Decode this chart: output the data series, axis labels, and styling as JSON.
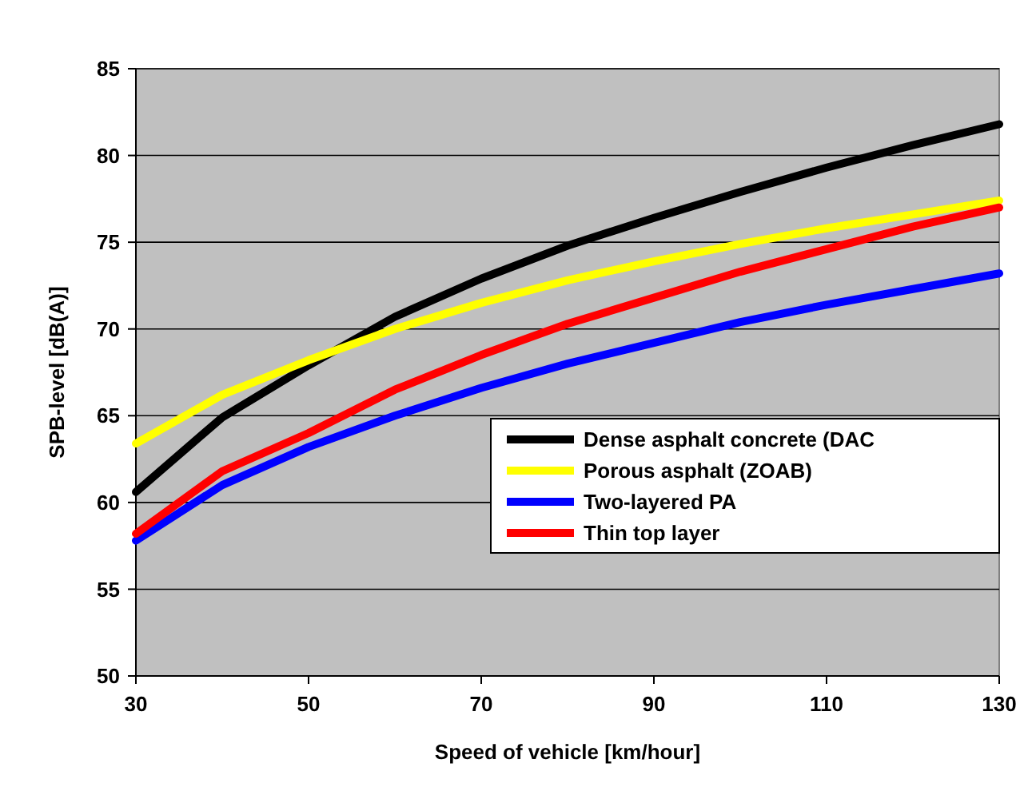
{
  "chart_data": {
    "type": "line",
    "xlabel": "Speed of vehicle [km/hour]",
    "ylabel": "SPB-level [dB(A)]",
    "x": [
      30,
      40,
      50,
      60,
      70,
      80,
      90,
      100,
      110,
      120,
      130
    ],
    "series": [
      {
        "name": "Dense asphalt concrete (DAC",
        "color": "#000000",
        "values": [
          60.6,
          64.9,
          67.9,
          70.7,
          72.9,
          74.8,
          76.4,
          77.9,
          79.3,
          80.6,
          81.8
        ]
      },
      {
        "name": "Porous asphalt (ZOAB)",
        "color": "#ffff00",
        "values": [
          63.4,
          66.2,
          68.2,
          70.0,
          71.5,
          72.8,
          73.9,
          74.9,
          75.8,
          76.6,
          77.4
        ]
      },
      {
        "name": "Two-layered PA",
        "color": "#0000ff",
        "values": [
          57.8,
          61.0,
          63.2,
          65.0,
          66.6,
          68.0,
          69.2,
          70.4,
          71.4,
          72.3,
          73.2
        ]
      },
      {
        "name": "Thin top layer",
        "color": "#ff0000",
        "values": [
          58.2,
          61.8,
          64.0,
          66.5,
          68.5,
          70.3,
          71.8,
          73.3,
          74.6,
          75.9,
          77.0
        ]
      }
    ],
    "xlim": [
      30,
      130
    ],
    "xticks": [
      30,
      50,
      70,
      90,
      110,
      130
    ],
    "ylim": [
      50,
      85
    ],
    "yticks": [
      50,
      55,
      60,
      65,
      70,
      75,
      80,
      85
    ],
    "grid": "y",
    "legend": "bottom right",
    "line_style": "solid"
  }
}
